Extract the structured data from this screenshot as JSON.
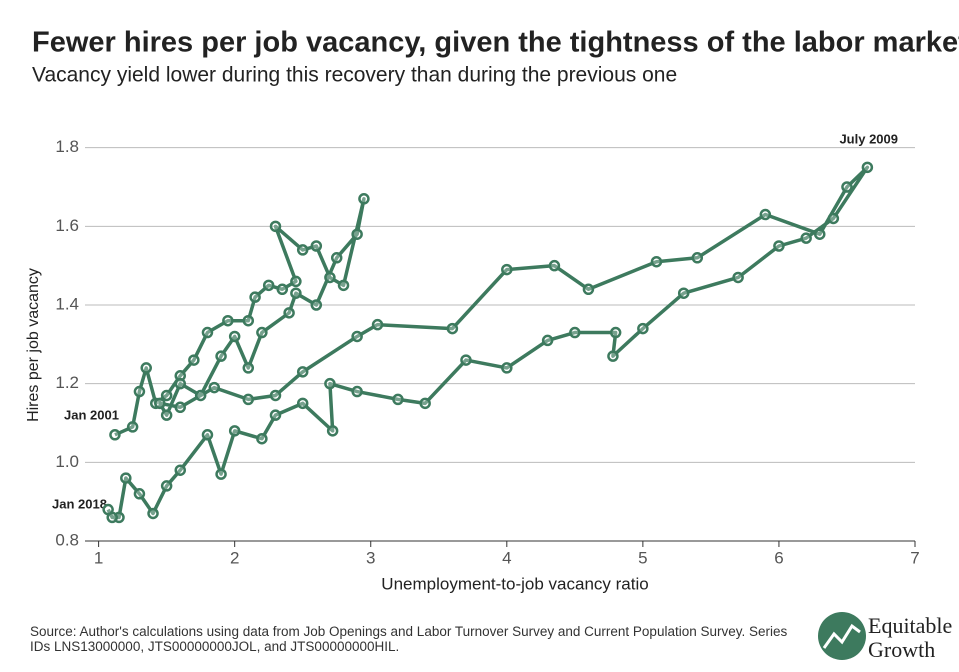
{
  "chart_data": {
    "type": "connected-scatter",
    "title": "Fewer hires per job vacancy, given the tightness of the labor market",
    "subtitle": "Vacancy yield lower during this recovery than during the previous one",
    "x_label": "Unemployment-to-job vacancy ratio",
    "y_label": "Hires per job vacancy",
    "annotations": [
      "July 2009",
      "Jan 2001",
      "Jan 2018"
    ],
    "source": "Source: Author's calculations using data from Job Openings and Labor Turnover Survey and Current Population Survey. Series IDs LNS13000000, JTS00000000JOL, and JTS00000000HIL.",
    "logo": [
      "Equitable",
      "Growth"
    ],
    "grid": true,
    "xlim": [
      0.9,
      7
    ],
    "xticks": [
      1,
      2,
      3,
      4,
      5,
      6,
      7
    ],
    "ylim": [
      0.8,
      1.85
    ],
    "yticks": [
      {
        "value": 0.8,
        "label": "0.8"
      },
      {
        "value": 1.0,
        "label": "1.0"
      },
      {
        "value": 1.2,
        "label": "1.2"
      },
      {
        "value": 1.4,
        "label": "1.4"
      },
      {
        "value": 1.6,
        "label": "1.6"
      },
      {
        "value": 1.8,
        "label": "1.8"
      }
    ],
    "series": [
      {
        "name": "Hires per vacancy",
        "color": "#3d7a5e",
        "x": [
          1.12,
          1.25,
          1.3,
          1.35,
          1.42,
          1.5,
          1.6,
          1.7,
          1.8,
          1.95,
          2.1,
          2.15,
          2.25,
          2.35,
          2.45,
          2.3,
          2.5,
          2.6,
          2.7,
          2.8,
          2.95,
          2.9,
          2.75,
          2.6,
          2.45,
          2.4,
          2.2,
          2.1,
          2.0,
          1.9,
          1.75,
          1.6,
          1.5,
          1.45,
          1.6,
          1.85,
          2.1,
          2.3,
          2.5,
          2.9,
          3.05,
          3.6,
          4.0,
          4.35,
          4.6,
          5.1,
          5.4,
          5.9,
          6.3,
          6.5,
          6.65,
          6.4,
          6.2,
          6.0,
          5.7,
          5.3,
          5.0,
          4.78,
          4.8,
          4.5,
          4.3,
          4.0,
          3.7,
          3.4,
          3.2,
          2.9,
          2.7,
          2.72,
          2.5,
          2.3,
          2.2,
          2.0,
          1.9,
          1.8,
          1.6,
          1.5,
          1.4,
          1.3,
          1.2,
          1.15,
          1.1,
          1.07
        ],
        "values": [
          1.07,
          1.09,
          1.18,
          1.24,
          1.15,
          1.17,
          1.22,
          1.26,
          1.33,
          1.36,
          1.36,
          1.42,
          1.45,
          1.44,
          1.46,
          1.6,
          1.54,
          1.55,
          1.47,
          1.45,
          1.67,
          1.58,
          1.52,
          1.4,
          1.43,
          1.38,
          1.33,
          1.24,
          1.32,
          1.27,
          1.17,
          1.2,
          1.12,
          1.15,
          1.14,
          1.19,
          1.16,
          1.17,
          1.23,
          1.32,
          1.35,
          1.34,
          1.49,
          1.5,
          1.44,
          1.51,
          1.52,
          1.63,
          1.58,
          1.7,
          1.75,
          1.62,
          1.57,
          1.55,
          1.47,
          1.43,
          1.34,
          1.27,
          1.33,
          1.33,
          1.31,
          1.24,
          1.26,
          1.15,
          1.16,
          1.18,
          1.2,
          1.08,
          1.15,
          1.12,
          1.06,
          1.08,
          0.97,
          1.07,
          0.98,
          0.94,
          0.87,
          0.92,
          0.96,
          0.86,
          0.86,
          0.88
        ]
      }
    ]
  }
}
